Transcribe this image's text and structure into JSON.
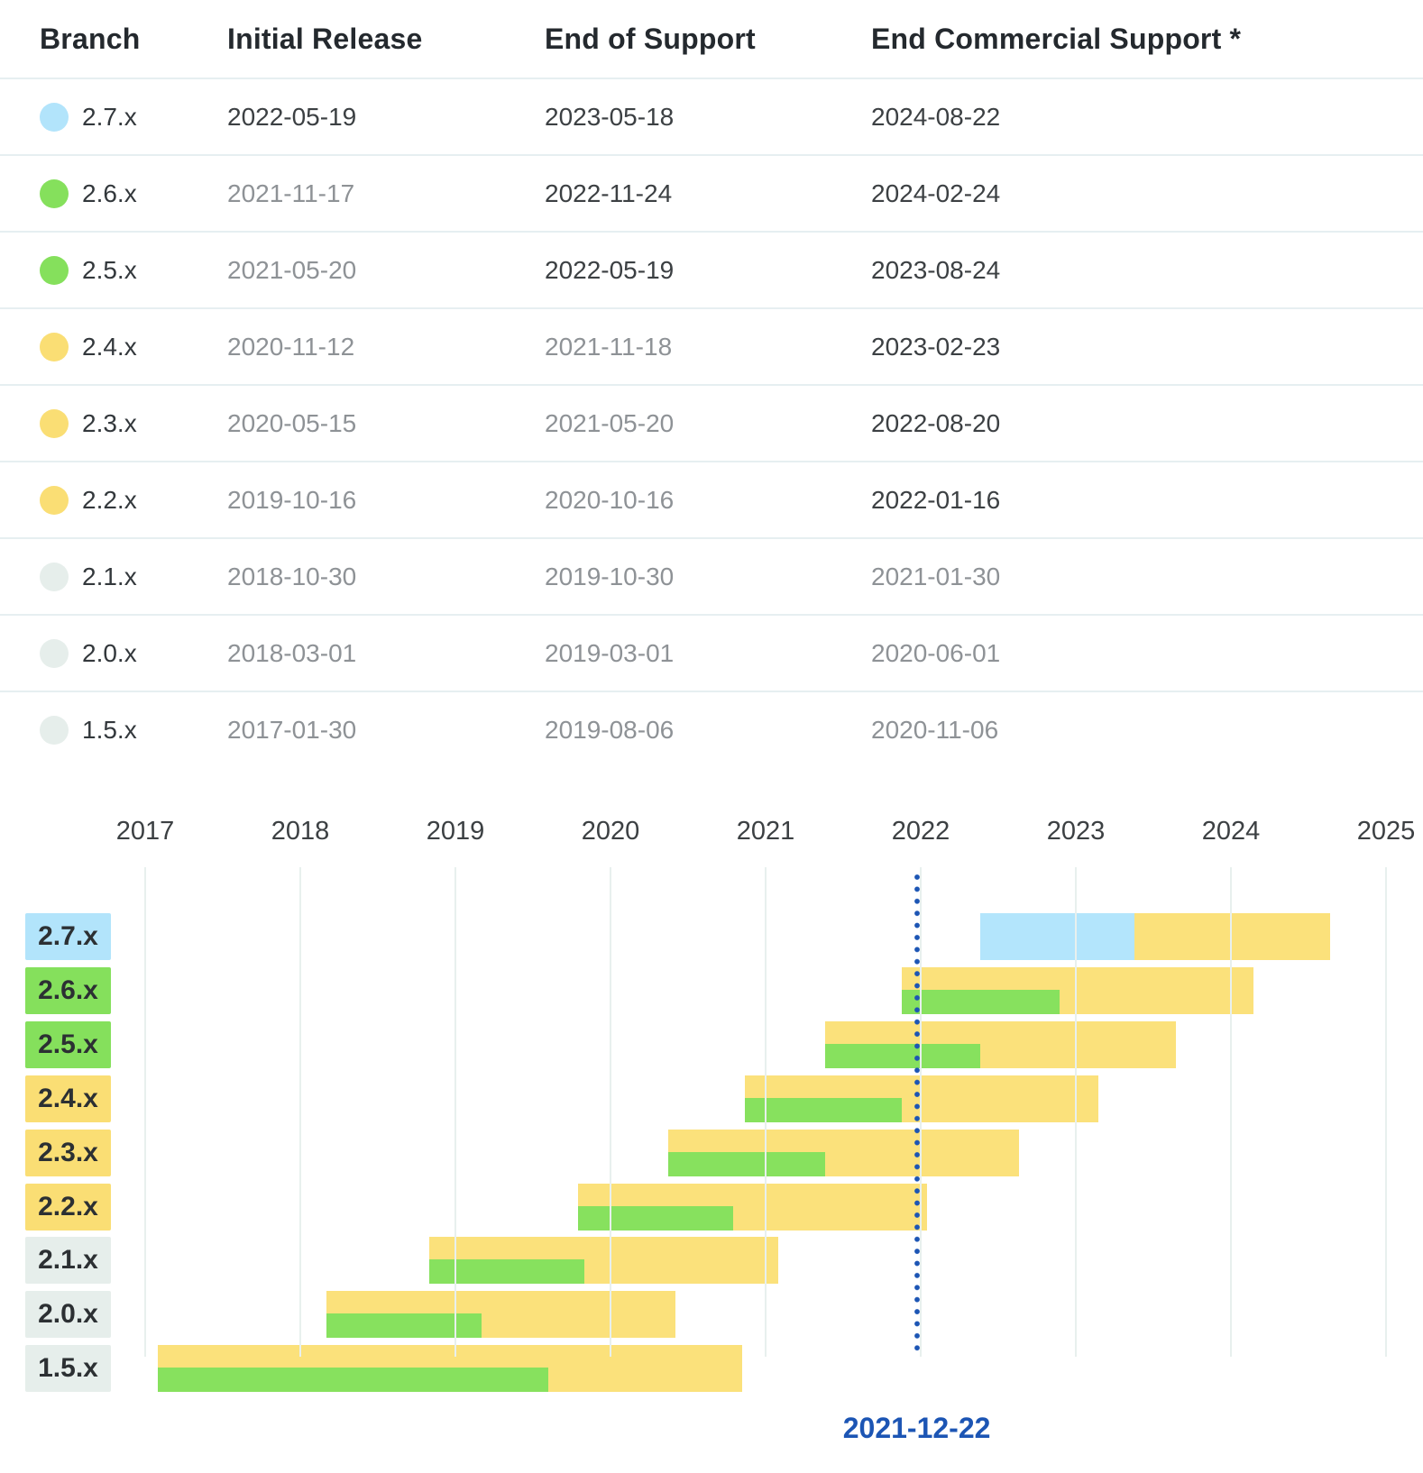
{
  "table": {
    "columns": [
      "Branch",
      "Initial Release",
      "End of Support",
      "End Commercial Support *"
    ]
  },
  "chart_data": {
    "type": "bar",
    "subtype": "gantt-release-timeline",
    "x_axis": {
      "ticks": [
        2017,
        2018,
        2019,
        2020,
        2021,
        2022,
        2023,
        2024,
        2025
      ],
      "range": [
        2016.1,
        2025.25
      ],
      "grid": true
    },
    "annotation": {
      "label": "2021-12-22",
      "date": "2021-12-22"
    },
    "legend_position": "none",
    "rows": [
      {
        "branch": "2.7.x",
        "status": "current",
        "initial_release": "2022-05-19",
        "end_of_support": "2023-05-18",
        "end_commercial_support": "2024-08-22"
      },
      {
        "branch": "2.6.x",
        "status": "supported",
        "initial_release": "2021-11-17",
        "end_of_support": "2022-11-24",
        "end_commercial_support": "2024-02-24"
      },
      {
        "branch": "2.5.x",
        "status": "supported",
        "initial_release": "2021-05-20",
        "end_of_support": "2022-05-19",
        "end_commercial_support": "2023-08-24"
      },
      {
        "branch": "2.4.x",
        "status": "commercial-only",
        "initial_release": "2020-11-12",
        "end_of_support": "2021-11-18",
        "end_commercial_support": "2023-02-23"
      },
      {
        "branch": "2.3.x",
        "status": "commercial-only",
        "initial_release": "2020-05-15",
        "end_of_support": "2021-05-20",
        "end_commercial_support": "2022-08-20"
      },
      {
        "branch": "2.2.x",
        "status": "commercial-only",
        "initial_release": "2019-10-16",
        "end_of_support": "2020-10-16",
        "end_commercial_support": "2022-01-16"
      },
      {
        "branch": "2.1.x",
        "status": "end-of-life",
        "initial_release": "2018-10-30",
        "end_of_support": "2019-10-30",
        "end_commercial_support": "2021-01-30"
      },
      {
        "branch": "2.0.x",
        "status": "end-of-life",
        "initial_release": "2018-03-01",
        "end_of_support": "2019-03-01",
        "end_commercial_support": "2020-06-01"
      },
      {
        "branch": "1.5.x",
        "status": "end-of-life",
        "initial_release": "2017-01-30",
        "end_of_support": "2019-08-06",
        "end_commercial_support": "2020-11-06"
      }
    ]
  },
  "colors": {
    "current": "#b2e4fb",
    "supported": "#85e05c",
    "commercial-only": "#fade74",
    "end-of-life": "#e6eeeb",
    "bar_commercial": "#fbe17b",
    "bar_support_green": "#87e15e",
    "bar_support_blue": "#b3e5fc",
    "annotation_blue": "#1c55b4"
  }
}
